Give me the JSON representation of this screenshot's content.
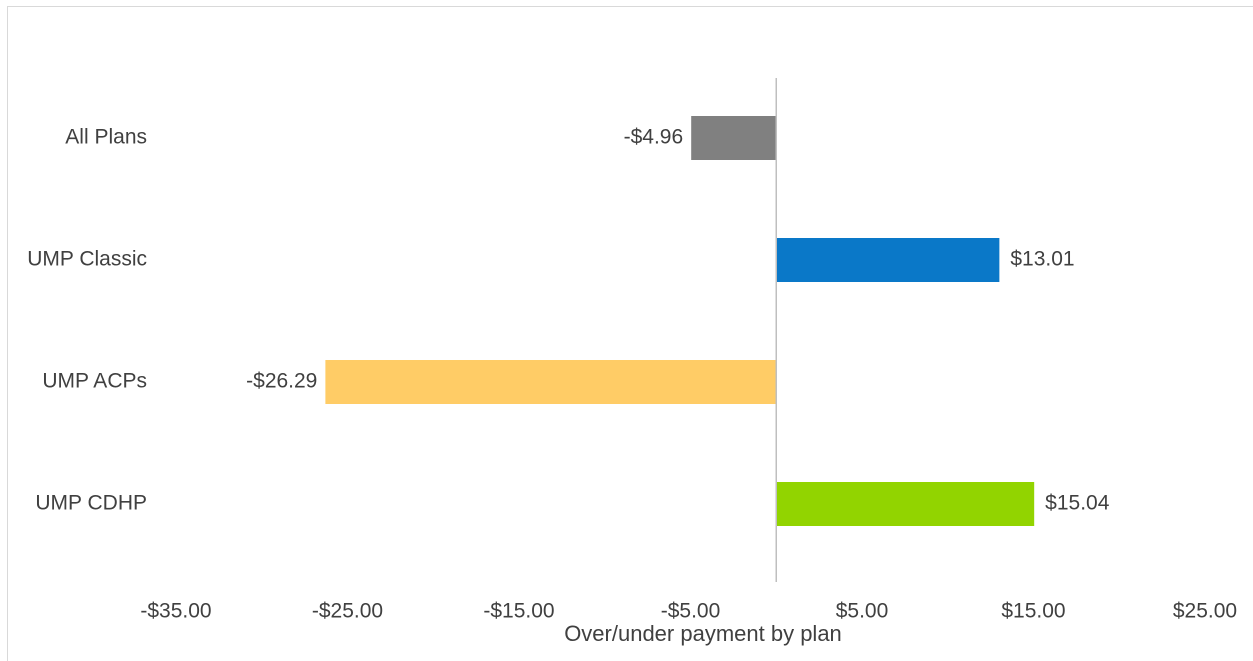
{
  "chart_data": {
    "type": "bar",
    "orientation": "horizontal",
    "categories": [
      "All Plans",
      "UMP Classic",
      "UMP ACPs",
      "UMP CDHP"
    ],
    "values": [
      -4.96,
      13.01,
      -26.29,
      15.04
    ],
    "value_labels": [
      "-$4.96",
      "$13.01",
      "-$26.29",
      "$15.04"
    ],
    "colors": [
      "#808080",
      "#0a78c8",
      "#ffcc66",
      "#92d400"
    ],
    "xticks": [
      -35,
      -25,
      -15,
      -5,
      5,
      15,
      25
    ],
    "xtick_labels": [
      "-$35.00",
      "-$25.00",
      "-$15.00",
      "-$5.00",
      "$5.00",
      "$15.00",
      "$25.00"
    ],
    "xlim": [
      -35,
      25
    ],
    "xlabel": "Over/under payment by plan",
    "title": "",
    "grid": false,
    "legend": "none"
  }
}
